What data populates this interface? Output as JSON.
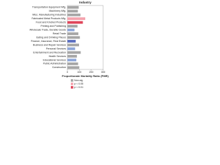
{
  "chart_data": {
    "type": "hbar",
    "title": "Industry",
    "x_label": "Proportionate Mortality Ratio (PMR)",
    "categories": [
      "Transportation Equipment Mfg.",
      "Machinery Mfg.",
      "Misc. Manufacturing Industries",
      "Fabricated Metal Products Mfg.",
      "Food and Kindred Products",
      "Printing and Publishing",
      "Wholesale Trade, Durable Goods",
      "Retail Trade",
      "Eating and Drinking Places",
      "Finance, Insurance, Real Estate",
      "Business and Repair Services",
      "Personal Services",
      "Entertainment and Recreation",
      "Health Services",
      "Educational Services",
      "Public Administration",
      "Construction"
    ],
    "values": [
      95,
      88,
      110,
      150,
      130,
      85,
      60,
      92,
      105,
      70,
      98,
      65,
      112,
      80,
      75,
      90,
      100
    ],
    "colors": [
      "#a6a6a6",
      "#a6a6a6",
      "#a6a6a6",
      "#f4a3ae",
      "#e0455a",
      "#a6a6a6",
      "#8fa7d8",
      "#a6a6a6",
      "#a6a6a6",
      "#5b6fc0",
      "#a6a6a6",
      "#8fa7d8",
      "#a6a6a6",
      "#a6a6a6",
      "#8fa7d8",
      "#a6a6a6",
      "#a6a6a6"
    ],
    "xlim": [
      0,
      300
    ],
    "xticks": [
      0,
      100,
      200,
      300
    ],
    "legend": [
      {
        "name": "Non-sig",
        "color": "#a6a6a6"
      },
      {
        "name": "p < 0.05",
        "color": "#f4a3ae"
      },
      {
        "name": "p < 0.01",
        "color": "#e0455a"
      }
    ]
  }
}
